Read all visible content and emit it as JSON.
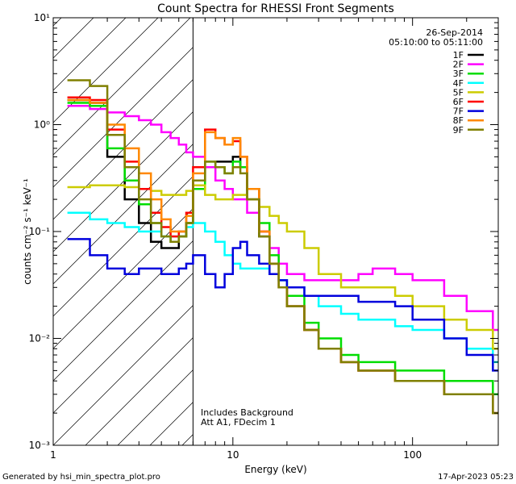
{
  "chart_data": {
    "type": "line",
    "title": "Count Spectra for RHESSI Front Segments",
    "xlabel": "Energy (keV)",
    "ylabel": "counts cm⁻² s⁻¹ keV⁻¹",
    "xscale": "log",
    "yscale": "log",
    "xlim": [
      1,
      300
    ],
    "ylim": [
      0.001,
      10
    ],
    "x_ticks": [
      {
        "value": 1,
        "label": "1"
      },
      {
        "value": 10,
        "label": "10"
      },
      {
        "value": 100,
        "label": "100"
      }
    ],
    "y_ticks": [
      {
        "value": 0.001,
        "label": "10⁻³"
      },
      {
        "value": 0.01,
        "label": "10⁻²"
      },
      {
        "value": 0.1,
        "label": "10⁻¹"
      },
      {
        "value": 1,
        "label": "10⁰"
      },
      {
        "value": 10,
        "label": "10¹"
      }
    ],
    "date": "26-Sep-2014",
    "time_range": "05:10:00 to 05:11:00",
    "annotation_line1": "Includes Background",
    "annotation_line2": "Att A1, FDecim 1",
    "attenuator_cutoff_kev": 6,
    "series": [
      {
        "name": "1F",
        "color": "#000000",
        "x": [
          1.2,
          1.6,
          2.0,
          2.5,
          3.0,
          3.5,
          4.0,
          4.5,
          5.0,
          5.5,
          6.0,
          7.0,
          8.0,
          9.0,
          10.0,
          11.0,
          12.0,
          14.0,
          16.0,
          18.0,
          20.0,
          25.0,
          30.0,
          40.0,
          50.0,
          60.0,
          80.0,
          100.0,
          150.0,
          200.0,
          280.0
        ],
        "values": [
          1.7,
          1.6,
          0.5,
          0.2,
          0.12,
          0.08,
          0.07,
          0.07,
          0.09,
          0.12,
          0.3,
          0.4,
          0.45,
          0.45,
          0.5,
          0.4,
          0.2,
          0.09,
          0.05,
          0.03,
          0.02,
          0.012,
          0.008,
          0.006,
          0.005,
          0.005,
          0.004,
          0.004,
          0.003,
          0.003,
          0.002
        ]
      },
      {
        "name": "2F",
        "color": "#ff00ff",
        "x": [
          1.2,
          1.6,
          2.0,
          2.5,
          3.0,
          3.5,
          4.0,
          4.5,
          5.0,
          5.5,
          6.0,
          7.0,
          8.0,
          9.0,
          10.0,
          11.0,
          12.0,
          14.0,
          16.0,
          18.0,
          20.0,
          25.0,
          30.0,
          40.0,
          50.0,
          60.0,
          80.0,
          100.0,
          150.0,
          200.0,
          280.0
        ],
        "values": [
          1.5,
          1.4,
          1.3,
          1.2,
          1.1,
          1.0,
          0.85,
          0.75,
          0.65,
          0.55,
          0.5,
          0.4,
          0.3,
          0.25,
          0.2,
          0.2,
          0.15,
          0.1,
          0.07,
          0.05,
          0.04,
          0.035,
          0.035,
          0.035,
          0.04,
          0.045,
          0.04,
          0.035,
          0.025,
          0.018,
          0.012
        ]
      },
      {
        "name": "3F",
        "color": "#00dd00",
        "x": [
          1.2,
          1.6,
          2.0,
          2.5,
          3.0,
          3.5,
          4.0,
          4.5,
          5.0,
          5.5,
          6.0,
          7.0,
          8.0,
          9.0,
          10.0,
          11.0,
          12.0,
          14.0,
          16.0,
          18.0,
          20.0,
          25.0,
          30.0,
          40.0,
          50.0,
          60.0,
          80.0,
          100.0,
          150.0,
          200.0,
          280.0
        ],
        "values": [
          1.6,
          1.5,
          0.6,
          0.3,
          0.18,
          0.12,
          0.09,
          0.08,
          0.09,
          0.12,
          0.25,
          0.45,
          0.4,
          0.35,
          0.45,
          0.4,
          0.25,
          0.12,
          0.06,
          0.035,
          0.025,
          0.014,
          0.01,
          0.007,
          0.006,
          0.006,
          0.005,
          0.005,
          0.004,
          0.004,
          0.003
        ]
      },
      {
        "name": "4F",
        "color": "#00ffff",
        "x": [
          1.2,
          1.6,
          2.0,
          2.5,
          3.0,
          3.5,
          4.0,
          4.5,
          5.0,
          5.5,
          6.0,
          7.0,
          8.0,
          9.0,
          10.0,
          11.0,
          12.0,
          14.0,
          16.0,
          18.0,
          20.0,
          25.0,
          30.0,
          40.0,
          50.0,
          60.0,
          80.0,
          100.0,
          150.0,
          200.0,
          280.0
        ],
        "values": [
          0.15,
          0.13,
          0.12,
          0.11,
          0.1,
          0.1,
          0.09,
          0.09,
          0.1,
          0.11,
          0.12,
          0.1,
          0.08,
          0.06,
          0.05,
          0.045,
          0.045,
          0.045,
          0.04,
          0.035,
          0.03,
          0.025,
          0.02,
          0.017,
          0.015,
          0.015,
          0.013,
          0.012,
          0.01,
          0.008,
          0.006
        ]
      },
      {
        "name": "5F",
        "color": "#cccc00",
        "x": [
          1.2,
          1.6,
          2.0,
          2.5,
          3.0,
          3.5,
          4.0,
          4.5,
          5.0,
          5.5,
          6.0,
          7.0,
          8.0,
          9.0,
          10.0,
          11.0,
          12.0,
          14.0,
          16.0,
          18.0,
          20.0,
          25.0,
          30.0,
          40.0,
          50.0,
          60.0,
          80.0,
          100.0,
          150.0,
          200.0,
          280.0
        ],
        "values": [
          0.26,
          0.27,
          0.27,
          0.26,
          0.25,
          0.24,
          0.22,
          0.22,
          0.22,
          0.24,
          0.27,
          0.22,
          0.2,
          0.2,
          0.22,
          0.22,
          0.2,
          0.17,
          0.14,
          0.12,
          0.1,
          0.07,
          0.04,
          0.03,
          0.03,
          0.03,
          0.025,
          0.02,
          0.015,
          0.012,
          0.008
        ]
      },
      {
        "name": "6F",
        "color": "#ff0000",
        "x": [
          1.2,
          1.6,
          2.0,
          2.5,
          3.0,
          3.5,
          4.0,
          4.5,
          5.0,
          5.5,
          6.0,
          7.0,
          8.0,
          9.0,
          10.0,
          11.0,
          12.0,
          14.0,
          16.0,
          18.0,
          20.0,
          25.0,
          30.0,
          40.0,
          50.0,
          60.0,
          80.0,
          100.0,
          150.0,
          200.0,
          280.0
        ],
        "values": [
          1.8,
          1.7,
          0.9,
          0.45,
          0.25,
          0.15,
          0.11,
          0.09,
          0.1,
          0.15,
          0.4,
          0.9,
          0.75,
          0.65,
          0.7,
          0.5,
          0.25,
          0.1,
          0.05,
          0.03,
          0.02,
          0.012,
          0.008,
          0.006,
          0.005,
          0.005,
          0.004,
          0.004,
          0.003,
          0.003,
          0.002
        ]
      },
      {
        "name": "7F",
        "color": "#0000dd",
        "x": [
          1.2,
          1.6,
          2.0,
          2.5,
          3.0,
          3.5,
          4.0,
          4.5,
          5.0,
          5.5,
          6.0,
          7.0,
          8.0,
          9.0,
          10.0,
          11.0,
          12.0,
          14.0,
          16.0,
          18.0,
          20.0,
          25.0,
          30.0,
          40.0,
          50.0,
          60.0,
          80.0,
          100.0,
          150.0,
          200.0,
          280.0
        ],
        "values": [
          0.085,
          0.06,
          0.045,
          0.04,
          0.045,
          0.045,
          0.04,
          0.04,
          0.045,
          0.05,
          0.06,
          0.04,
          0.03,
          0.04,
          0.07,
          0.08,
          0.06,
          0.05,
          0.04,
          0.035,
          0.03,
          0.025,
          0.025,
          0.025,
          0.022,
          0.022,
          0.02,
          0.015,
          0.01,
          0.007,
          0.005
        ]
      },
      {
        "name": "8F",
        "color": "#ff8800",
        "x": [
          1.2,
          1.6,
          2.0,
          2.5,
          3.0,
          3.5,
          4.0,
          4.5,
          5.0,
          5.5,
          6.0,
          7.0,
          8.0,
          9.0,
          10.0,
          11.0,
          12.0,
          14.0,
          16.0,
          18.0,
          20.0,
          25.0,
          30.0,
          40.0,
          50.0,
          60.0,
          80.0,
          100.0,
          150.0,
          200.0,
          280.0
        ],
        "values": [
          1.7,
          1.6,
          1.0,
          0.6,
          0.35,
          0.2,
          0.13,
          0.1,
          0.1,
          0.14,
          0.35,
          0.85,
          0.75,
          0.65,
          0.75,
          0.5,
          0.25,
          0.1,
          0.05,
          0.03,
          0.02,
          0.012,
          0.008,
          0.006,
          0.005,
          0.005,
          0.004,
          0.004,
          0.003,
          0.003,
          0.002
        ]
      },
      {
        "name": "9F",
        "color": "#808000",
        "x": [
          1.2,
          1.6,
          2.0,
          2.5,
          3.0,
          3.5,
          4.0,
          4.5,
          5.0,
          5.5,
          6.0,
          7.0,
          8.0,
          9.0,
          10.0,
          11.0,
          12.0,
          14.0,
          16.0,
          18.0,
          20.0,
          25.0,
          30.0,
          40.0,
          50.0,
          60.0,
          80.0,
          100.0,
          150.0,
          200.0,
          280.0
        ],
        "values": [
          2.6,
          2.3,
          0.8,
          0.4,
          0.2,
          0.12,
          0.09,
          0.08,
          0.09,
          0.12,
          0.3,
          0.45,
          0.4,
          0.35,
          0.4,
          0.35,
          0.2,
          0.09,
          0.05,
          0.03,
          0.02,
          0.012,
          0.008,
          0.006,
          0.005,
          0.005,
          0.004,
          0.004,
          0.003,
          0.003,
          0.002
        ]
      }
    ]
  },
  "footer": {
    "generated_by": "Generated by hsi_min_spectra_plot.pro",
    "timestamp": "17-Apr-2023 05:23"
  }
}
